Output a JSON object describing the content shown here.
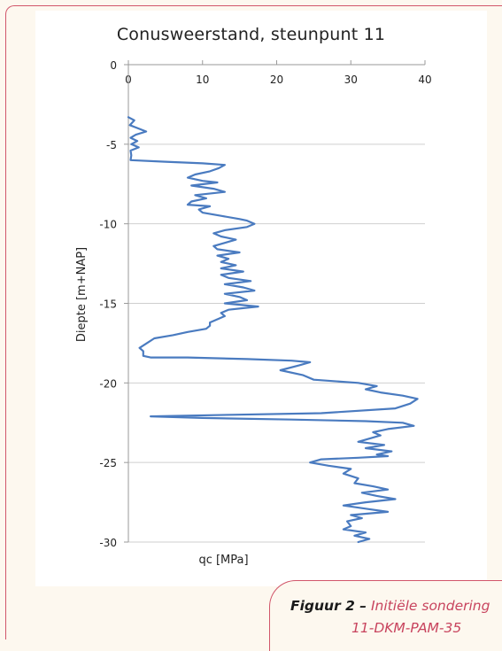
{
  "figure": {
    "caption_label": "Figuur 2 –",
    "caption_text_line1": "Initiële sondering",
    "caption_text_line2": "11-DKM-PAM-35"
  },
  "chart_data": {
    "type": "line",
    "title": "Conusweerstand, steunpunt 11",
    "xlabel": "qc [MPa]",
    "ylabel": "Diepte [m+NAP]",
    "xlim": [
      0,
      40
    ],
    "ylim": [
      -30,
      0
    ],
    "xticks": [
      0,
      10,
      20,
      30,
      40
    ],
    "yticks": [
      0,
      -5,
      -10,
      -15,
      -20,
      -25,
      -30
    ],
    "grid": "horizontal",
    "line_color": "#4a7bc0",
    "series": [
      {
        "name": "",
        "points": [
          [
            0.0,
            -3.3
          ],
          [
            0.8,
            -3.5
          ],
          [
            0.2,
            -3.8
          ],
          [
            1.3,
            -4.0
          ],
          [
            2.4,
            -4.2
          ],
          [
            1.0,
            -4.4
          ],
          [
            0.3,
            -4.6
          ],
          [
            1.2,
            -4.8
          ],
          [
            0.4,
            -5.0
          ],
          [
            1.4,
            -5.2
          ],
          [
            0.3,
            -5.4
          ],
          [
            0.4,
            -5.7
          ],
          [
            0.3,
            -6.0
          ],
          [
            5.0,
            -6.1
          ],
          [
            10.0,
            -6.2
          ],
          [
            13.0,
            -6.3
          ],
          [
            12.2,
            -6.5
          ],
          [
            11.0,
            -6.7
          ],
          [
            9.0,
            -6.9
          ],
          [
            8.0,
            -7.1
          ],
          [
            10.0,
            -7.3
          ],
          [
            12.0,
            -7.4
          ],
          [
            8.5,
            -7.6
          ],
          [
            11.5,
            -7.8
          ],
          [
            13.0,
            -8.0
          ],
          [
            9.0,
            -8.2
          ],
          [
            10.5,
            -8.4
          ],
          [
            8.5,
            -8.6
          ],
          [
            8.0,
            -8.8
          ],
          [
            11.0,
            -8.9
          ],
          [
            9.5,
            -9.1
          ],
          [
            10.0,
            -9.3
          ],
          [
            12.5,
            -9.5
          ],
          [
            15.0,
            -9.7
          ],
          [
            16.0,
            -9.8
          ],
          [
            17.0,
            -10.0
          ],
          [
            16.0,
            -10.2
          ],
          [
            13.0,
            -10.4
          ],
          [
            11.5,
            -10.6
          ],
          [
            12.5,
            -10.8
          ],
          [
            14.5,
            -11.0
          ],
          [
            13.0,
            -11.2
          ],
          [
            11.5,
            -11.4
          ],
          [
            12.0,
            -11.6
          ],
          [
            15.0,
            -11.8
          ],
          [
            12.0,
            -12.0
          ],
          [
            13.5,
            -12.2
          ],
          [
            12.5,
            -12.4
          ],
          [
            14.5,
            -12.6
          ],
          [
            12.5,
            -12.8
          ],
          [
            15.5,
            -13.0
          ],
          [
            12.5,
            -13.2
          ],
          [
            13.5,
            -13.4
          ],
          [
            16.5,
            -13.6
          ],
          [
            13.0,
            -13.8
          ],
          [
            15.5,
            -14.0
          ],
          [
            17.0,
            -14.2
          ],
          [
            13.0,
            -14.4
          ],
          [
            15.0,
            -14.6
          ],
          [
            16.0,
            -14.8
          ],
          [
            13.0,
            -15.0
          ],
          [
            17.5,
            -15.2
          ],
          [
            13.5,
            -15.4
          ],
          [
            12.5,
            -15.6
          ],
          [
            13.0,
            -15.8
          ],
          [
            12.0,
            -16.0
          ],
          [
            11.0,
            -16.2
          ],
          [
            11.0,
            -16.4
          ],
          [
            10.5,
            -16.6
          ],
          [
            8.0,
            -16.8
          ],
          [
            6.0,
            -17.0
          ],
          [
            3.5,
            -17.2
          ],
          [
            2.5,
            -17.5
          ],
          [
            1.5,
            -17.8
          ],
          [
            2.0,
            -18.0
          ],
          [
            2.0,
            -18.3
          ],
          [
            3.0,
            -18.4
          ],
          [
            8.0,
            -18.4
          ],
          [
            16.0,
            -18.5
          ],
          [
            22.0,
            -18.6
          ],
          [
            24.5,
            -18.7
          ],
          [
            23.0,
            -18.9
          ],
          [
            20.5,
            -19.2
          ],
          [
            23.5,
            -19.5
          ],
          [
            25.0,
            -19.8
          ],
          [
            31.0,
            -20.0
          ],
          [
            33.5,
            -20.2
          ],
          [
            32.0,
            -20.4
          ],
          [
            34.0,
            -20.6
          ],
          [
            37.0,
            -20.8
          ],
          [
            39.0,
            -21.0
          ],
          [
            38.0,
            -21.3
          ],
          [
            36.0,
            -21.6
          ],
          [
            26.0,
            -21.9
          ],
          [
            14.0,
            -22.0
          ],
          [
            3.0,
            -22.1
          ],
          [
            10.0,
            -22.2
          ],
          [
            22.0,
            -22.3
          ],
          [
            32.0,
            -22.4
          ],
          [
            37.0,
            -22.5
          ],
          [
            38.5,
            -22.7
          ],
          [
            35.0,
            -22.9
          ],
          [
            33.0,
            -23.1
          ],
          [
            34.0,
            -23.3
          ],
          [
            32.5,
            -23.5
          ],
          [
            31.0,
            -23.7
          ],
          [
            34.5,
            -23.9
          ],
          [
            32.0,
            -24.1
          ],
          [
            35.5,
            -24.3
          ],
          [
            33.5,
            -24.5
          ],
          [
            35.0,
            -24.6
          ],
          [
            31.0,
            -24.7
          ],
          [
            26.0,
            -24.8
          ],
          [
            24.5,
            -25.0
          ],
          [
            27.0,
            -25.2
          ],
          [
            30.0,
            -25.4
          ],
          [
            29.0,
            -25.7
          ],
          [
            31.0,
            -26.0
          ],
          [
            30.5,
            -26.3
          ],
          [
            33.0,
            -26.5
          ],
          [
            35.0,
            -26.7
          ],
          [
            31.5,
            -26.9
          ],
          [
            33.5,
            -27.1
          ],
          [
            36.0,
            -27.3
          ],
          [
            32.0,
            -27.5
          ],
          [
            29.0,
            -27.7
          ],
          [
            32.0,
            -27.9
          ],
          [
            35.0,
            -28.1
          ],
          [
            30.0,
            -28.3
          ],
          [
            31.5,
            -28.5
          ],
          [
            29.5,
            -28.7
          ],
          [
            30.0,
            -29.0
          ],
          [
            29.0,
            -29.2
          ],
          [
            32.0,
            -29.4
          ],
          [
            30.5,
            -29.6
          ],
          [
            32.5,
            -29.8
          ],
          [
            31.0,
            -30.0
          ]
        ]
      }
    ]
  }
}
